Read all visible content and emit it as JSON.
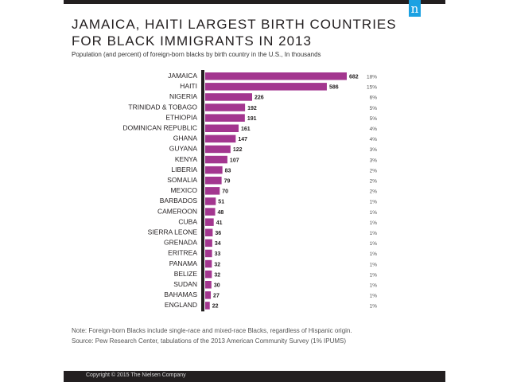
{
  "header": {
    "logo": "n",
    "logo_color": "#1ba1e2"
  },
  "chart_data": {
    "type": "bar",
    "orientation": "horizontal",
    "title": "JAMAICA, HAITI LARGEST BIRTH COUNTRIES FOR BLACK IMMIGRANTS IN 2013",
    "subtitle": "Population (and percent) of foreign-born blacks by birth country in the U.S., In thousands",
    "categories": [
      "JAMAICA",
      "HAITI",
      "NIGERIA",
      "TRINIDAD & TOBAGO",
      "ETHIOPIA",
      "DOMINICAN REPUBLIC",
      "GHANA",
      "GUYANA",
      "KENYA",
      "LIBERIA",
      "SOMALIA",
      "MEXICO",
      "BARBADOS",
      "CAMEROON",
      "CUBA",
      "SIERRA LEONE",
      "GRENADA",
      "ERITREA",
      "PANAMA",
      "BELIZE",
      "SUDAN",
      "BAHAMAS",
      "ENGLAND"
    ],
    "values": [
      682,
      586,
      226,
      192,
      191,
      161,
      147,
      122,
      107,
      83,
      79,
      70,
      51,
      48,
      41,
      36,
      34,
      33,
      32,
      32,
      30,
      27,
      22
    ],
    "percents": [
      "18%",
      "15%",
      "6%",
      "5%",
      "5%",
      "4%",
      "4%",
      "3%",
      "3%",
      "2%",
      "2%",
      "2%",
      "1%",
      "1%",
      "1%",
      "1%",
      "1%",
      "1%",
      "1%",
      "1%",
      "1%",
      "1%",
      "1%"
    ],
    "bar_color": "#a3368f",
    "grid": false
  },
  "notes": {
    "note": "Note: Foreign-born Blacks include single-race and mixed-race Blacks, regardless of Hispanic origin.",
    "source": "Source: Pew Research Center, tabulations of the 2013 American Community Survey (1% IPUMS)"
  },
  "footer": {
    "copyright": "Copyright © 2015 The Nielsen Company"
  }
}
